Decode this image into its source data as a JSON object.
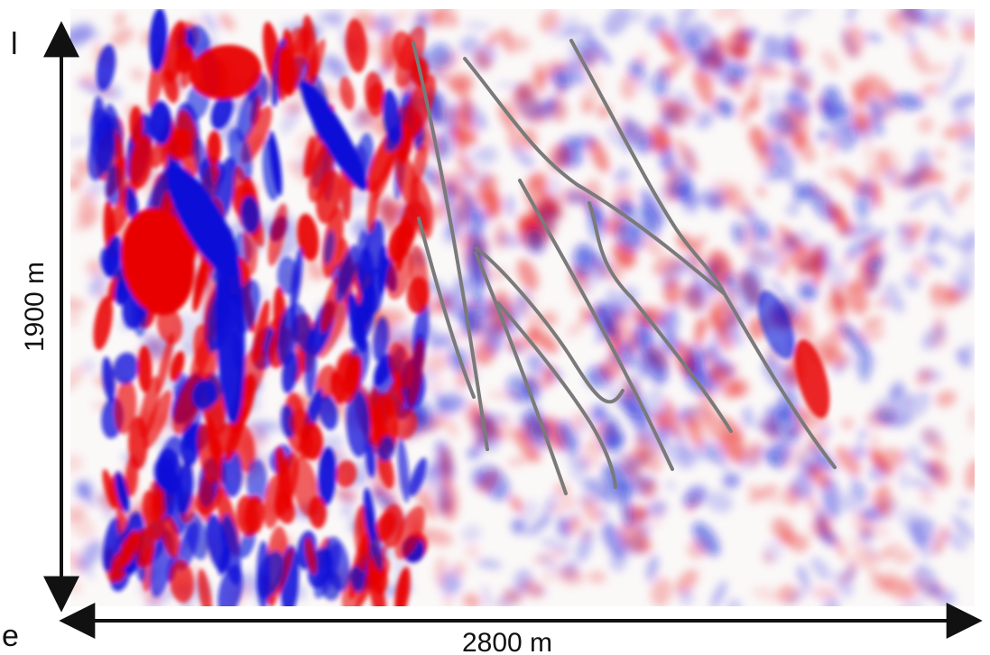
{
  "figure": {
    "height_label": "1900 m",
    "width_label": "2800 m",
    "edge_text_top": "l",
    "edge_text_bottom": "e"
  },
  "colors": {
    "positive": "#e80000",
    "negative": "#0a10d8",
    "fault_lines": "#7a7a7a",
    "arrows": "#111111",
    "background": "#ffffff"
  },
  "annotations": {
    "fault_count": 9
  }
}
